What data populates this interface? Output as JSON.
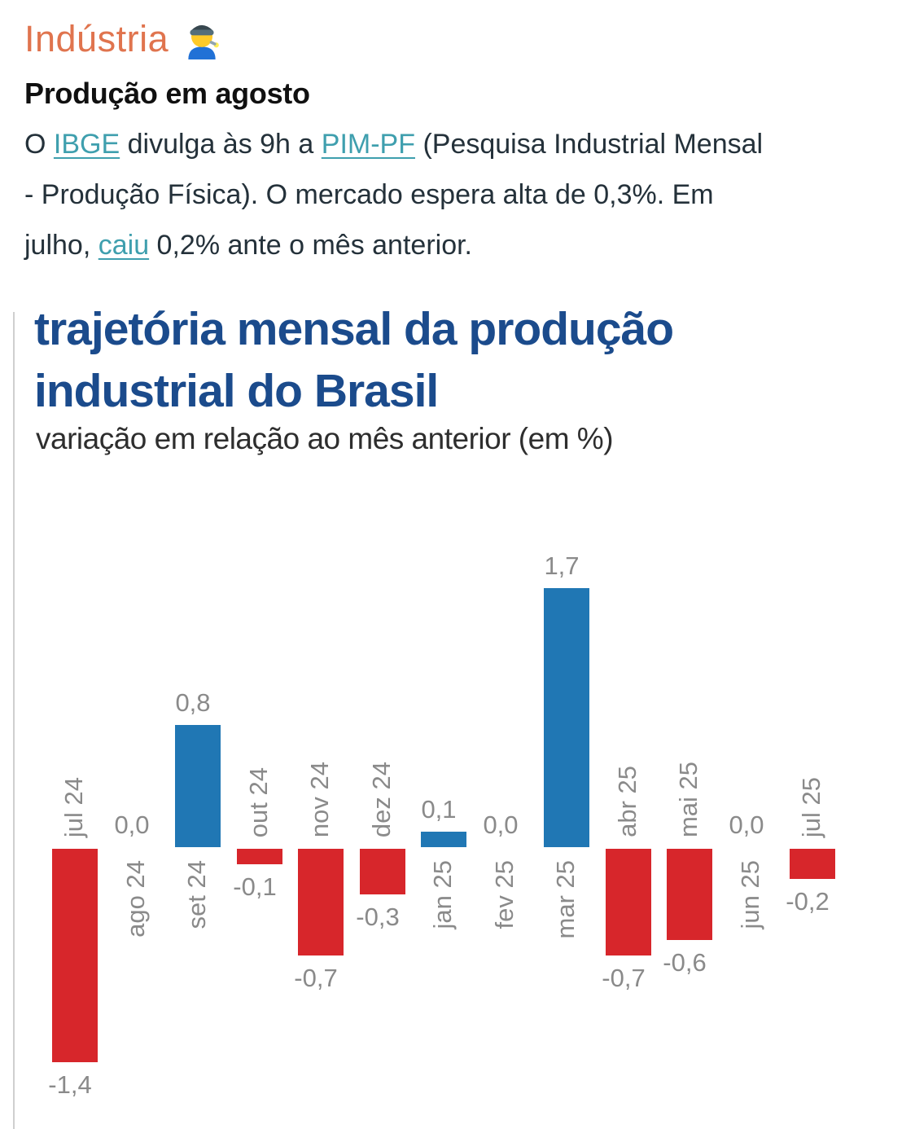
{
  "header": {
    "title": "Indústria",
    "emoji_name": "man-factory-worker-emoji",
    "production_heading": "Produção em agosto",
    "paragraph_lines": [
      [
        {
          "t": "O "
        },
        {
          "t": "IBGE",
          "link": true
        },
        {
          "t": " divulga às 9h a "
        },
        {
          "t": "PIM-PF",
          "link": true
        },
        {
          "t": " (Pesquisa Industrial Mensal"
        }
      ],
      [
        {
          "t": "- Produção Física). O mercado espera alta de 0,3%. Em"
        }
      ],
      [
        {
          "t": "julho, "
        },
        {
          "t": "caiu",
          "link": true
        },
        {
          "t": " 0,2% ante o mês anterior."
        }
      ]
    ]
  },
  "chart_data": {
    "type": "bar",
    "title": "trajetória mensal da produção industrial do Brasil",
    "subtitle": "variação em relação ao mês anterior (em %)",
    "categories": [
      "jul 24",
      "ago 24",
      "set 24",
      "out 24",
      "nov 24",
      "dez 24",
      "jan 25",
      "fev 25",
      "mar 25",
      "abr 25",
      "mai 25",
      "jun 25",
      "jul 25"
    ],
    "values": [
      -1.4,
      0.0,
      0.8,
      -0.1,
      -0.7,
      -0.3,
      0.1,
      0.0,
      1.7,
      -0.7,
      -0.6,
      0.0,
      -0.2
    ],
    "value_labels": [
      "-1,4",
      "0,0",
      "0,8",
      "-0,1",
      "-0,7",
      "-0,3",
      "0,1",
      "0,0",
      "1,7",
      "-0,7",
      "-0,6",
      "0,0",
      "-0,2"
    ],
    "unit": "%",
    "orientation": "vertical",
    "grid": false,
    "legend": false,
    "ylim": [
      -1.6,
      1.9
    ],
    "bar_color_positive": "#2077b4",
    "bar_color_negative": "#d7262b",
    "label_color": "#8a8a8a"
  },
  "colors": {
    "header_orange": "#e0744e",
    "link_teal": "#3f9fae",
    "title_blue": "#1b4b8c",
    "body_text": "#24313a",
    "card_border": "#cfcfcf"
  }
}
